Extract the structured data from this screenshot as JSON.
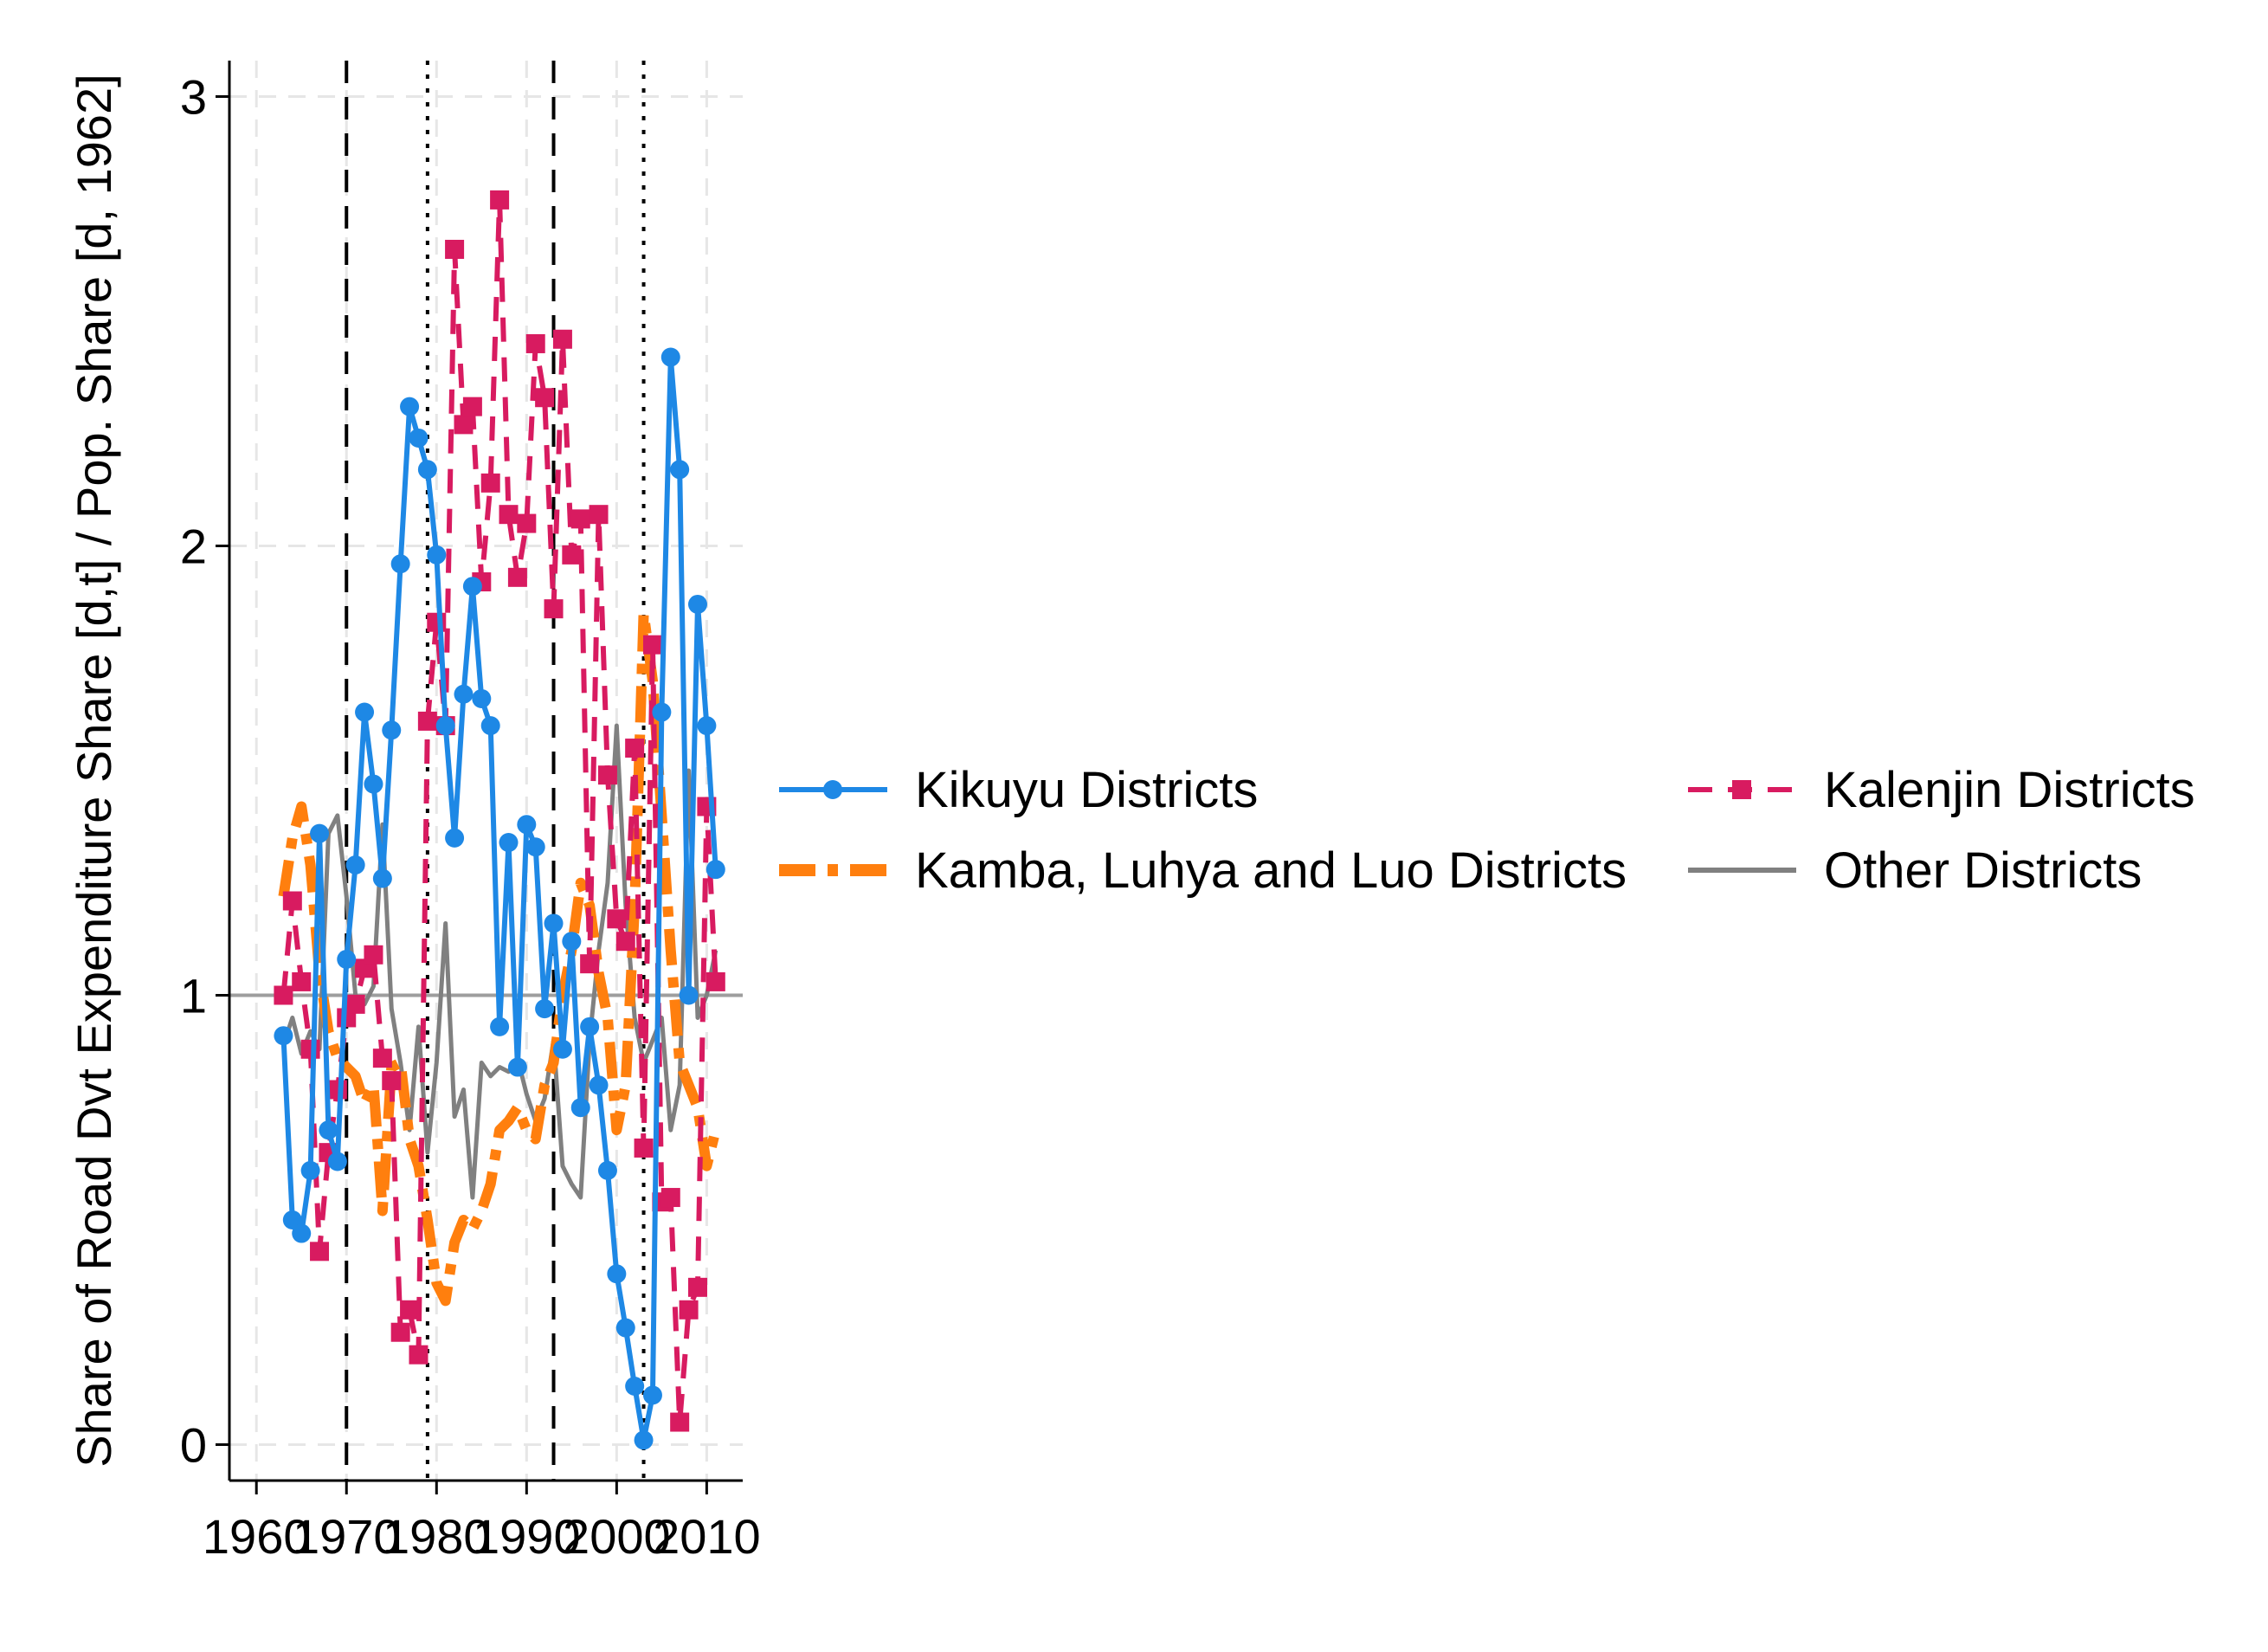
{
  "chart_data": {
    "type": "line",
    "title": "",
    "xlabel": "",
    "ylabel": "Share of Road Dvt Expenditure Share [d,t] / Pop. Share [d, 1962]",
    "xlim": [
      1957,
      2014
    ],
    "ylim": [
      -0.08,
      3.08
    ],
    "x_ticks": [
      1960,
      1970,
      1980,
      1990,
      2000,
      2010
    ],
    "x_tick_labels": [
      "1960",
      "1970",
      "1980",
      "1990",
      "2000",
      "2010"
    ],
    "y_ticks": [
      0,
      1,
      2,
      3
    ],
    "y_tick_labels": [
      "0",
      "1",
      "2",
      "3"
    ],
    "grid": true,
    "reference_line_y": 1,
    "vlines": [
      {
        "x": 1970,
        "style": "dashed"
      },
      {
        "x": 1979,
        "style": "dotted"
      },
      {
        "x": 1993,
        "style": "dashed"
      },
      {
        "x": 2003,
        "style": "dotted"
      }
    ],
    "legend_position": "right",
    "x": [
      1963,
      1964,
      1965,
      1966,
      1967,
      1968,
      1969,
      1970,
      1971,
      1972,
      1973,
      1974,
      1975,
      1976,
      1977,
      1978,
      1979,
      1980,
      1981,
      1982,
      1983,
      1984,
      1985,
      1986,
      1987,
      1988,
      1989,
      1990,
      1991,
      1992,
      1993,
      1994,
      1995,
      1996,
      1997,
      1998,
      1999,
      2000,
      2001,
      2002,
      2003,
      2004,
      2005,
      2006,
      2007,
      2008,
      2009,
      2010,
      2011
    ],
    "series": [
      {
        "name": "Kikuyu Districts",
        "color": "#1e88e5",
        "dash": "solid",
        "marker": "circle",
        "values": [
          0.91,
          0.5,
          0.47,
          0.61,
          1.36,
          0.7,
          0.63,
          1.08,
          1.29,
          1.63,
          1.47,
          1.26,
          1.59,
          1.96,
          2.31,
          2.24,
          2.17,
          1.98,
          1.6,
          1.35,
          1.67,
          1.91,
          1.66,
          1.6,
          0.93,
          1.34,
          0.84,
          1.38,
          1.33,
          0.97,
          1.16,
          0.88,
          1.12,
          0.75,
          0.93,
          0.8,
          0.61,
          0.38,
          0.26,
          0.13,
          0.01,
          0.11,
          1.63,
          2.42,
          2.17,
          1.0,
          1.87,
          1.6,
          1.28
        ]
      },
      {
        "name": "Kalenjin Districts",
        "color": "#d81b60",
        "dash": "dashed",
        "marker": "square",
        "values": [
          1.0,
          1.21,
          1.03,
          0.88,
          0.43,
          0.65,
          0.79,
          0.95,
          0.98,
          1.06,
          1.09,
          0.86,
          0.81,
          0.25,
          0.3,
          0.2,
          1.61,
          1.83,
          1.6,
          2.66,
          2.27,
          2.31,
          1.92,
          2.14,
          2.77,
          2.07,
          1.93,
          2.05,
          2.45,
          2.33,
          1.86,
          2.46,
          1.98,
          2.06,
          1.07,
          2.07,
          1.49,
          1.17,
          1.12,
          1.55,
          0.66,
          1.78,
          0.54,
          0.55,
          0.05,
          0.3,
          0.35,
          1.42,
          1.03
        ]
      },
      {
        "name": "Kamba, Luhya and Luo Districts",
        "color": "#ff7f0e",
        "dash": "dashdot",
        "marker": "none",
        "values": [
          1.22,
          1.35,
          1.42,
          1.29,
          1.05,
          0.92,
          0.86,
          0.84,
          0.82,
          0.76,
          0.8,
          0.52,
          0.84,
          0.85,
          0.68,
          0.62,
          0.5,
          0.36,
          0.32,
          0.45,
          0.5,
          0.48,
          0.52,
          0.58,
          0.7,
          0.72,
          0.75,
          0.7,
          0.68,
          0.8,
          0.85,
          1.0,
          1.1,
          1.25,
          1.2,
          1.05,
          0.95,
          0.7,
          0.8,
          1.2,
          1.85,
          1.7,
          1.4,
          1.1,
          0.85,
          0.8,
          0.75,
          0.62,
          0.7
        ]
      },
      {
        "name": "Other Districts",
        "color": "#808080",
        "dash": "solid",
        "marker": "none",
        "values": [
          0.89,
          0.95,
          0.87,
          0.92,
          0.88,
          1.36,
          1.4,
          1.22,
          1.0,
          0.98,
          1.02,
          1.38,
          0.97,
          0.85,
          0.7,
          0.93,
          0.65,
          0.85,
          1.16,
          0.73,
          0.79,
          0.55,
          0.85,
          0.82,
          0.84,
          0.83,
          0.86,
          0.78,
          0.72,
          0.77,
          0.9,
          0.62,
          0.58,
          0.55,
          0.9,
          1.1,
          1.25,
          1.6,
          1.2,
          0.95,
          0.85,
          0.9,
          0.95,
          0.7,
          0.8,
          1.5,
          0.95,
          1.0,
          1.1
        ]
      }
    ]
  },
  "legend": {
    "items": [
      {
        "label": "Kikuyu Districts",
        "color": "#1e88e5",
        "dash": "solid",
        "marker": "circle"
      },
      {
        "label": "Kamba, Luhya and Luo Districts",
        "color": "#ff7f0e",
        "dash": "dashdot",
        "marker": "none"
      },
      {
        "label": "Kalenjin Districts",
        "color": "#d81b60",
        "dash": "dashed",
        "marker": "square"
      },
      {
        "label": "Other Districts",
        "color": "#808080",
        "dash": "solid",
        "marker": "none"
      }
    ]
  }
}
